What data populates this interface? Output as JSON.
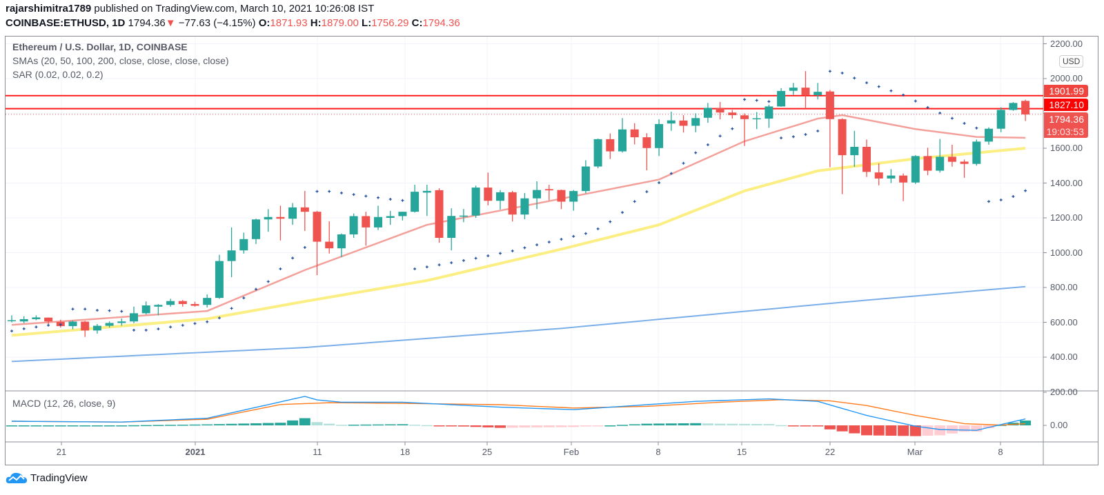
{
  "header": {
    "publisher": "rajarshimitra1789",
    "published_text": "published on TradingView.com, March 10, 2021 10:26:08 IST",
    "symbol": "COINBASE:ETHUSD, 1D",
    "last": "1794.36",
    "change": "−77.63 (−4.15%)",
    "o_label": "O:",
    "o": "1871.93",
    "h_label": "H:",
    "h": "1879.00",
    "l_label": "L:",
    "l": "1756.29",
    "c_label": "C:",
    "c": "1794.36"
  },
  "legend": {
    "title": "Ethereum / U.S. Dollar, 1D, COINBASE",
    "smas": "SMAs (20, 50, 100, 200, close, close, close, close)",
    "sar": "SAR (0.02, 0.02, 0.2)",
    "macd": "MACD (12, 26, close, 9)"
  },
  "currency": "USD",
  "price_labels": {
    "line1": "1901.99",
    "line2": "1827.10",
    "current": "1794.36",
    "countdown": "19:03:53"
  },
  "price_axis": [
    "2200.00",
    "2000.00",
    "1800.00",
    "1600.00",
    "1400.00",
    "1200.00",
    "1000.00",
    "800.00",
    "600.00",
    "400.00"
  ],
  "macd_axis": [
    "200.00",
    "0.00"
  ],
  "date_axis": [
    "21",
    "2021",
    "11",
    "18",
    "25",
    "Feb",
    "8",
    "15",
    "22",
    "Mar",
    "8"
  ],
  "branding": "TradingView",
  "colors": {
    "up": "#26a69a",
    "down": "#ef5350",
    "sma20": "#f4a09a",
    "sma50": "#fbee82",
    "sma100": "#7aaee8",
    "sar": "#1f4e9c",
    "hline": "#ff1a1a",
    "macd": "#2196f3",
    "signal": "#ff7a1a"
  },
  "chart_data": {
    "type": "candlestick",
    "title": "Ethereum / U.S. Dollar, 1D, COINBASE",
    "ylim": [
      300,
      2250
    ],
    "hlines": [
      1901.99,
      1827.1
    ],
    "ohlc": [
      [
        608,
        640,
        600,
        612
      ],
      [
        605,
        635,
        595,
        618
      ],
      [
        618,
        640,
        612,
        628
      ],
      [
        627,
        628,
        580,
        605
      ],
      [
        602,
        615,
        570,
        578
      ],
      [
        578,
        610,
        560,
        604
      ],
      [
        604,
        608,
        516,
        553
      ],
      [
        553,
        590,
        535,
        580
      ],
      [
        580,
        605,
        570,
        596
      ],
      [
        596,
        622,
        580,
        605
      ],
      [
        605,
        690,
        595,
        652
      ],
      [
        652,
        720,
        645,
        697
      ],
      [
        690,
        705,
        640,
        700
      ],
      [
        700,
        735,
        690,
        722
      ],
      [
        722,
        728,
        690,
        705
      ],
      [
        705,
        718,
        690,
        695
      ],
      [
        700,
        760,
        685,
        740
      ],
      [
        740,
        988,
        735,
        952
      ],
      [
        952,
        1145,
        859,
        1013
      ],
      [
        1013,
        1115,
        995,
        1078
      ],
      [
        1078,
        1195,
        1050,
        1191
      ],
      [
        1191,
        1250,
        1120,
        1205
      ],
      [
        1205,
        1270,
        1070,
        1195
      ],
      [
        1195,
        1285,
        1160,
        1260
      ],
      [
        1260,
        1355,
        1125,
        1235
      ],
      [
        1235,
        1240,
        871,
        1063
      ],
      [
        1063,
        1180,
        995,
        1025
      ],
      [
        1025,
        1110,
        975,
        1105
      ],
      [
        1105,
        1225,
        1085,
        1210
      ],
      [
        1210,
        1235,
        1040,
        1145
      ],
      [
        1145,
        1270,
        1130,
        1205
      ],
      [
        1200,
        1240,
        1160,
        1210
      ],
      [
        1210,
        1235,
        1185,
        1235
      ],
      [
        1235,
        1390,
        1230,
        1350
      ],
      [
        1345,
        1390,
        1211,
        1355
      ],
      [
        1359,
        1370,
        1057,
        1085
      ],
      [
        1085,
        1255,
        1013,
        1211
      ],
      [
        1208,
        1251,
        1175,
        1213
      ],
      [
        1213,
        1385,
        1200,
        1374
      ],
      [
        1374,
        1460,
        1272,
        1298
      ],
      [
        1298,
        1360,
        1248,
        1347
      ],
      [
        1347,
        1355,
        1179,
        1219
      ],
      [
        1219,
        1343,
        1192,
        1312
      ],
      [
        1312,
        1410,
        1250,
        1360
      ],
      [
        1365,
        1390,
        1301,
        1358
      ],
      [
        1360,
        1362,
        1250,
        1293
      ],
      [
        1293,
        1360,
        1241,
        1354
      ],
      [
        1354,
        1531,
        1341,
        1495
      ],
      [
        1495,
        1655,
        1485,
        1652
      ],
      [
        1652,
        1685,
        1538,
        1582
      ],
      [
        1582,
        1773,
        1575,
        1708
      ],
      [
        1708,
        1744,
        1622,
        1663
      ],
      [
        1663,
        1686,
        1473,
        1601
      ],
      [
        1601,
        1766,
        1555,
        1739
      ],
      [
        1742,
        1810,
        1700,
        1760
      ],
      [
        1759,
        1790,
        1690,
        1729
      ],
      [
        1729,
        1800,
        1692,
        1773
      ],
      [
        1775,
        1860,
        1746,
        1832
      ],
      [
        1832,
        1866,
        1766,
        1805
      ],
      [
        1805,
        1820,
        1770,
        1790
      ],
      [
        1789,
        1800,
        1613,
        1767
      ],
      [
        1768,
        1808,
        1710,
        1772
      ],
      [
        1770,
        1850,
        1717,
        1840
      ],
      [
        1840,
        1945,
        1838,
        1929
      ],
      [
        1930,
        1975,
        1907,
        1948
      ],
      [
        1948,
        2043,
        1826,
        1905
      ],
      [
        1905,
        1975,
        1880,
        1924
      ],
      [
        1926,
        1935,
        1491,
        1767
      ],
      [
        1767,
        1772,
        1336,
        1560
      ],
      [
        1560,
        1700,
        1493,
        1608
      ],
      [
        1608,
        1650,
        1435,
        1464
      ],
      [
        1461,
        1513,
        1387,
        1426
      ],
      [
        1426,
        1480,
        1400,
        1443
      ],
      [
        1443,
        1455,
        1296,
        1403
      ],
      [
        1403,
        1560,
        1395,
        1555
      ],
      [
        1555,
        1603,
        1445,
        1471
      ],
      [
        1471,
        1653,
        1460,
        1551
      ],
      [
        1551,
        1620,
        1494,
        1522
      ],
      [
        1523,
        1535,
        1430,
        1510
      ],
      [
        1510,
        1650,
        1500,
        1638
      ],
      [
        1638,
        1720,
        1620,
        1712
      ],
      [
        1712,
        1835,
        1692,
        1820
      ],
      [
        1820,
        1865,
        1815,
        1860
      ],
      [
        1871.93,
        1879,
        1756.29,
        1794.36
      ]
    ],
    "sar": [
      550,
      563,
      573,
      583,
      587,
      676,
      676,
      669,
      667,
      663,
      555,
      555,
      562,
      573,
      583,
      593,
      603,
      625,
      680,
      740,
      790,
      834,
      907,
      969,
      1030,
      1352,
      1352,
      1343,
      1334,
      1325,
      1316,
      1307,
      1300,
      907,
      918,
      930,
      942,
      955,
      968,
      982,
      996,
      1010,
      1028,
      1045,
      1061,
      1077,
      1094,
      1110,
      1137,
      1178,
      1231,
      1294,
      1350,
      1402,
      1455,
      1514,
      1574,
      1620,
      1670,
      1712,
      1880,
      1875,
      1868,
      1659,
      1666,
      1679,
      1699,
      2042,
      2032,
      2003,
      1976,
      1954,
      1930,
      1906,
      1871,
      1834,
      1802,
      1772,
      1743,
      1716,
      1294,
      1303,
      1323,
      1356
    ],
    "sma20_keypoints": [
      [
        0,
        585
      ],
      [
        16,
        665
      ],
      [
        24,
        900
      ],
      [
        34,
        1160
      ],
      [
        45,
        1310
      ],
      [
        53,
        1420
      ],
      [
        60,
        1640
      ],
      [
        66,
        1770
      ],
      [
        68,
        1790
      ],
      [
        74,
        1710
      ],
      [
        79,
        1665
      ],
      [
        83,
        1660
      ]
    ],
    "sma50_keypoints": [
      [
        0,
        525
      ],
      [
        16,
        620
      ],
      [
        24,
        720
      ],
      [
        34,
        840
      ],
      [
        45,
        1020
      ],
      [
        53,
        1160
      ],
      [
        60,
        1355
      ],
      [
        66,
        1470
      ],
      [
        74,
        1540
      ],
      [
        83,
        1600
      ]
    ],
    "sma100_keypoints": [
      [
        0,
        375
      ],
      [
        24,
        455
      ],
      [
        45,
        565
      ],
      [
        68,
        715
      ],
      [
        83,
        805
      ]
    ],
    "macd": {
      "ylim": [
        -80,
        220
      ],
      "macd_keypoints": [
        [
          0,
          25
        ],
        [
          9,
          20
        ],
        [
          16,
          43
        ],
        [
          24,
          175
        ],
        [
          25,
          154
        ],
        [
          27,
          140
        ],
        [
          32,
          140
        ],
        [
          40,
          110
        ],
        [
          46,
          95
        ],
        [
          50,
          115
        ],
        [
          56,
          145
        ],
        [
          62,
          160
        ],
        [
          66,
          145
        ],
        [
          70,
          60
        ],
        [
          74,
          -5
        ],
        [
          76,
          -25
        ],
        [
          79,
          -30
        ],
        [
          81,
          5
        ],
        [
          83,
          39
        ]
      ],
      "signal_keypoints": [
        [
          0,
          25
        ],
        [
          9,
          20
        ],
        [
          16,
          37
        ],
        [
          22,
          126
        ],
        [
          26,
          137
        ],
        [
          32,
          133
        ],
        [
          40,
          125
        ],
        [
          46,
          105
        ],
        [
          52,
          115
        ],
        [
          58,
          140
        ],
        [
          63,
          155
        ],
        [
          67,
          148
        ],
        [
          70,
          120
        ],
        [
          74,
          60
        ],
        [
          78,
          10
        ],
        [
          81,
          2
        ],
        [
          83,
          10
        ]
      ]
    }
  }
}
